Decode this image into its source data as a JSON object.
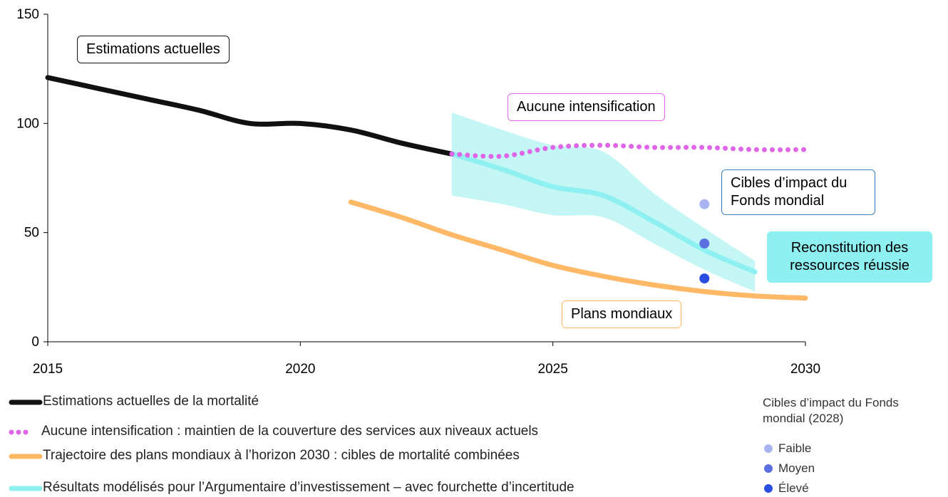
{
  "chart_data": {
    "type": "line",
    "xlim": [
      2015,
      2030
    ],
    "xticks": [
      2015,
      2020,
      2025,
      2030
    ],
    "ylim": [
      0,
      150
    ],
    "yticks": [
      0,
      50,
      100,
      150
    ],
    "series": [
      {
        "name": "Estimations actuelles de la mortalité",
        "color": "#111111",
        "style": "solid",
        "x": [
          2015,
          2016,
          2017,
          2018,
          2019,
          2020,
          2021,
          2022,
          2023
        ],
        "values": [
          121,
          116,
          111,
          106,
          100,
          100,
          97,
          91,
          86
        ]
      },
      {
        "name": "Aucune intensification : maintien de la couverture des services aux niveaux actuels",
        "color": "#e066e8",
        "style": "dotted",
        "x": [
          2023,
          2024,
          2025,
          2026,
          2027,
          2028,
          2029,
          2030
        ],
        "values": [
          86,
          85,
          89,
          90,
          89,
          89,
          88,
          88
        ]
      },
      {
        "name": "Trajectoire des plans mondiaux à l’horizon 2030 : cibles de mortalité combinées",
        "color": "#ffb866",
        "style": "solid",
        "x": [
          2021,
          2022,
          2023,
          2024,
          2025,
          2026,
          2027,
          2028,
          2029,
          2030
        ],
        "values": [
          64,
          57,
          49,
          42,
          35,
          30,
          26,
          23,
          21,
          20
        ]
      },
      {
        "name": "Résultats modélisés pour l’Argumentaire d’investissement – avec fourchette d’incertitude",
        "color": "#8ef0f0",
        "style": "solid",
        "x": [
          2023,
          2024,
          2025,
          2026,
          2027,
          2028,
          2029
        ],
        "values": [
          86,
          79,
          71,
          67,
          55,
          42,
          32
        ]
      }
    ],
    "band": {
      "color": "#c4f6f6",
      "x": [
        2023,
        2024,
        2025,
        2026,
        2027,
        2028,
        2029
      ],
      "lower": [
        67,
        63,
        58,
        57,
        45,
        33,
        23
      ],
      "upper": [
        105,
        97,
        90,
        87,
        68,
        52,
        37
      ]
    },
    "targets": {
      "title": "Cibles d’impact du Fonds mondial (2028)",
      "x": 2028,
      "points": [
        {
          "name": "Faible",
          "color": "#aab4f0",
          "value": 63
        },
        {
          "name": "Moyen",
          "color": "#5b6fe0",
          "value": 45
        },
        {
          "name": "Élevé",
          "color": "#2a4ee0",
          "value": 29
        }
      ]
    },
    "annotations": [
      {
        "text": "Estimations actuelles",
        "border": "#111111",
        "fill": "#ffffff"
      },
      {
        "text": "Aucune intensification",
        "border": "#e066e8",
        "fill": "#ffffff"
      },
      {
        "text": "Cibles d’impact du Fonds mondial",
        "border": "#3a7fc0",
        "fill": "#ffffff"
      },
      {
        "text": "Reconstitution des ressources réussie",
        "border": "#8ef0f0",
        "fill": "#8ef0f0"
      },
      {
        "text": "Plans mondiaux",
        "border": "#ffb866",
        "fill": "#ffffff"
      }
    ]
  }
}
